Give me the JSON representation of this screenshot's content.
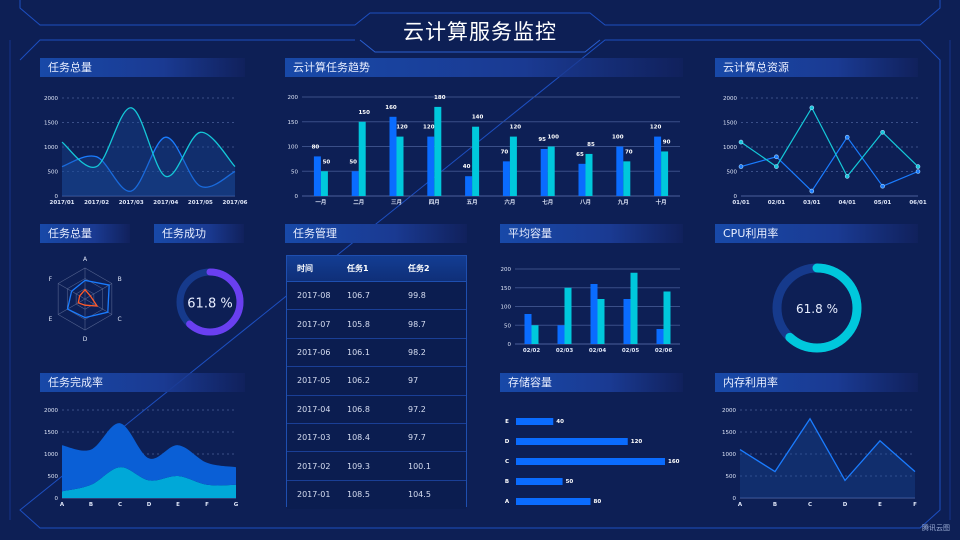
{
  "header": {
    "title": "云计算服务监控"
  },
  "panels": {
    "p1": "任务总量",
    "p2": "云计算任务趋势",
    "p3": "云计算总资源",
    "p4": "任务总量",
    "p5": "任务成功",
    "p6": "任务管理",
    "p7": "平均容量",
    "p8": "CPU利用率",
    "p9": "任务完成率",
    "p10": "存储容量",
    "p11": "内存利用率"
  },
  "table": {
    "headers": [
      "时间",
      "任务1",
      "任务2"
    ],
    "rows": [
      [
        "2017-08",
        "106.7",
        "99.8"
      ],
      [
        "2017-07",
        "105.8",
        "98.7"
      ],
      [
        "2017-06",
        "106.1",
        "98.2"
      ],
      [
        "2017-05",
        "106.2",
        "97"
      ],
      [
        "2017-04",
        "106.8",
        "97.2"
      ],
      [
        "2017-03",
        "108.4",
        "97.7"
      ],
      [
        "2017-02",
        "109.3",
        "100.1"
      ],
      [
        "2017-01",
        "108.5",
        "104.5"
      ]
    ]
  },
  "watermark": "腾讯云图",
  "colors": {
    "blue": "#0a6cff",
    "cyan": "#00c8dc",
    "purple": "#6a3ff0",
    "orange": "#ff5a2a",
    "grid": "#3a4f88"
  },
  "chart_data": [
    {
      "id": "total",
      "type": "area",
      "smooth": true,
      "categories": [
        "2017/01",
        "2017/02",
        "2017/03",
        "2017/04",
        "2017/05",
        "2017/06"
      ],
      "ylim": [
        0,
        2000
      ],
      "yticks": [
        0,
        500,
        1000,
        1500,
        2000
      ],
      "grid": true,
      "series": [
        {
          "values": [
            600,
            800,
            100,
            1200,
            200,
            500
          ],
          "color": "#1a7cff"
        },
        {
          "values": [
            1100,
            600,
            1800,
            400,
            1300,
            600
          ],
          "color": "#14c8d8"
        }
      ]
    },
    {
      "id": "trend",
      "type": "bar",
      "categories": [
        "一月",
        "二月",
        "三月",
        "四月",
        "五月",
        "六月",
        "七月",
        "八月",
        "九月",
        "十月"
      ],
      "ylim": [
        0,
        200
      ],
      "yticks": [
        0,
        50,
        100,
        150,
        200
      ],
      "grid": true,
      "data_labels": true,
      "series": [
        {
          "values": [
            80,
            50,
            160,
            120,
            40,
            70,
            95,
            65,
            100,
            120
          ],
          "color": "#0a6cff"
        },
        {
          "values": [
            50,
            150,
            120,
            180,
            140,
            120,
            100,
            85,
            70,
            90
          ],
          "color": "#00c8dc"
        }
      ]
    },
    {
      "id": "resource",
      "type": "line",
      "markers": true,
      "categories": [
        "01/01",
        "02/01",
        "03/01",
        "04/01",
        "05/01",
        "06/01"
      ],
      "ylim": [
        0,
        2000
      ],
      "yticks": [
        0,
        500,
        1000,
        1500,
        2000
      ],
      "grid": true,
      "series": [
        {
          "values": [
            600,
            800,
            100,
            1200,
            200,
            500
          ],
          "color": "#1a7cff"
        },
        {
          "values": [
            1100,
            600,
            1800,
            400,
            1300,
            600
          ],
          "color": "#14c8d8"
        }
      ]
    },
    {
      "id": "radar",
      "type": "radar",
      "indicators": [
        "A",
        "B",
        "C",
        "D",
        "E",
        "F"
      ],
      "max": 100,
      "series": [
        {
          "values": [
            60,
            90,
            85,
            60,
            65,
            50
          ],
          "color": "#1a7cff"
        },
        {
          "values": [
            30,
            20,
            45,
            20,
            25,
            20
          ],
          "color": "#ff5a2a"
        }
      ]
    },
    {
      "id": "success",
      "type": "gauge",
      "value": 61.8,
      "label": "61.8 %",
      "color": "#6a3ff0"
    },
    {
      "id": "avg",
      "type": "bar",
      "categories": [
        "02/02",
        "02/03",
        "02/04",
        "02/05",
        "02/06"
      ],
      "ylim": [
        0,
        200
      ],
      "yticks": [
        0,
        50,
        100,
        150,
        200
      ],
      "grid": true,
      "series": [
        {
          "values": [
            80,
            50,
            160,
            120,
            40
          ],
          "color": "#0a6cff"
        },
        {
          "values": [
            50,
            150,
            120,
            190,
            140
          ],
          "color": "#00c8dc"
        }
      ]
    },
    {
      "id": "cpu",
      "type": "gauge",
      "value": 61.8,
      "label": "61.8 %",
      "color": "#00c8dc"
    },
    {
      "id": "completion",
      "type": "area",
      "stacked": true,
      "smooth": true,
      "categories": [
        "A",
        "B",
        "C",
        "D",
        "E",
        "F",
        "G"
      ],
      "ylim": [
        0,
        2000
      ],
      "yticks": [
        0,
        500,
        1000,
        1500,
        2000
      ],
      "grid": true,
      "series": [
        {
          "values": [
            150,
            300,
            700,
            400,
            500,
            300,
            300
          ],
          "color": "#00a8d8"
        },
        {
          "values": [
            1050,
            800,
            1000,
            500,
            700,
            500,
            400
          ],
          "color": "#0a5fd6"
        }
      ]
    },
    {
      "id": "storage",
      "type": "hbar",
      "categories": [
        "A",
        "B",
        "C",
        "D",
        "E"
      ],
      "values": [
        80,
        50,
        160,
        120,
        40
      ],
      "data_labels": true,
      "color": "#0a6cff"
    },
    {
      "id": "memory",
      "type": "area",
      "categories": [
        "A",
        "B",
        "C",
        "D",
        "E",
        "F"
      ],
      "ylim": [
        0,
        2000
      ],
      "yticks": [
        0,
        500,
        1000,
        1500,
        2000
      ],
      "grid": true,
      "series": [
        {
          "values": [
            1100,
            600,
            1800,
            400,
            1300,
            600
          ],
          "color": "#1a7cff"
        }
      ]
    }
  ]
}
